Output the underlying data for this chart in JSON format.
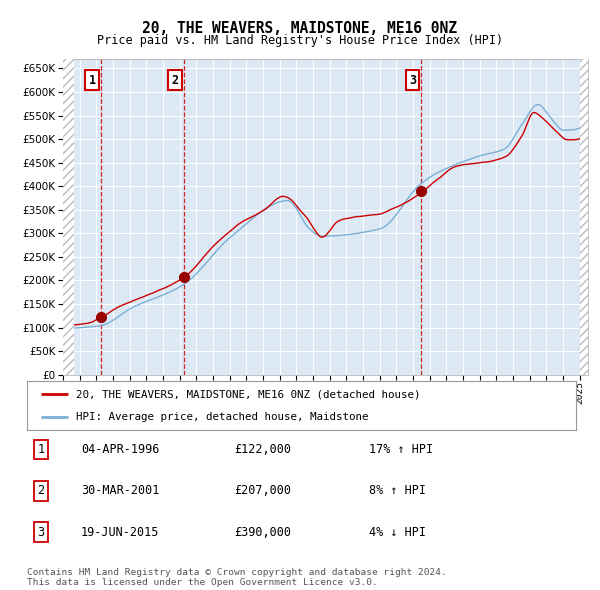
{
  "title": "20, THE WEAVERS, MAIDSTONE, ME16 0NZ",
  "subtitle": "Price paid vs. HM Land Registry's House Price Index (HPI)",
  "legend_line1": "20, THE WEAVERS, MAIDSTONE, ME16 0NZ (detached house)",
  "legend_line2": "HPI: Average price, detached house, Maidstone",
  "sale_dates": [
    "04-APR-1996",
    "30-MAR-2001",
    "19-JUN-2015"
  ],
  "sale_prices": [
    122000,
    207000,
    390000
  ],
  "sale_labels": [
    "1",
    "2",
    "3"
  ],
  "sale_pct": [
    "17% ↑ HPI",
    "8% ↑ HPI",
    "4% ↓ HPI"
  ],
  "vline_years": [
    1996.26,
    2001.24,
    2015.47
  ],
  "hpi_color": "#7bafd4",
  "price_color": "#cc0000",
  "dot_color": "#990000",
  "vline_color": "#cc0000",
  "plot_bg": "#dce9f5",
  "ylim": [
    0,
    670000
  ],
  "xlim_start": 1994.0,
  "xlim_end": 2025.5,
  "footer": "Contains HM Land Registry data © Crown copyright and database right 2024.\nThis data is licensed under the Open Government Licence v3.0."
}
